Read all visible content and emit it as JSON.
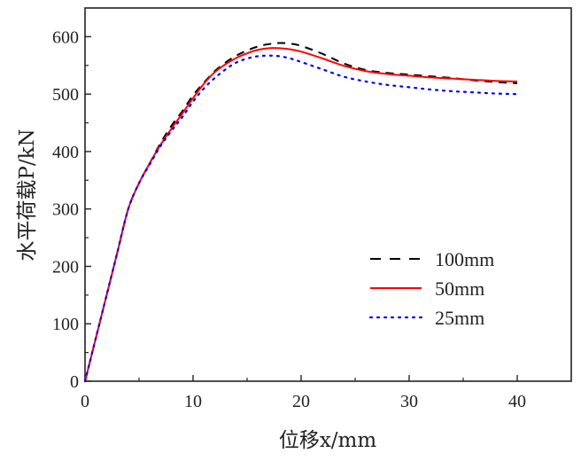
{
  "chart_data": {
    "type": "line",
    "title": "",
    "xlabel": "位移x/mm",
    "ylabel": "水平荷载P/kN",
    "xlim": [
      0,
      45
    ],
    "ylim": [
      0,
      650
    ],
    "xticks": [
      0,
      10,
      20,
      30,
      40
    ],
    "yticks": [
      0,
      100,
      200,
      300,
      400,
      500,
      600
    ],
    "grid": false,
    "legend_position": "center-right",
    "series": [
      {
        "name": "100mm",
        "color": "#000000",
        "style": "dashed",
        "x": [
          0,
          1,
          2,
          3,
          4,
          5,
          6,
          7,
          8,
          9,
          10,
          11,
          12,
          13,
          14,
          15,
          16,
          17,
          18,
          19,
          20,
          22,
          24,
          26,
          28,
          30,
          32,
          34,
          36,
          38,
          40
        ],
        "y": [
          0,
          75,
          150,
          225,
          300,
          345,
          380,
          415,
          445,
          470,
          498,
          520,
          540,
          555,
          567,
          576,
          583,
          587,
          589,
          588,
          584,
          570,
          553,
          542,
          537,
          534,
          531,
          528,
          524,
          521,
          519
        ]
      },
      {
        "name": "50mm",
        "color": "#ff0000",
        "style": "solid",
        "x": [
          0,
          1,
          2,
          3,
          4,
          5,
          6,
          7,
          8,
          9,
          10,
          11,
          12,
          13,
          14,
          15,
          16,
          17,
          18,
          19,
          20,
          22,
          24,
          26,
          28,
          30,
          32,
          34,
          36,
          38,
          40
        ],
        "y": [
          0,
          75,
          150,
          225,
          300,
          345,
          380,
          412,
          440,
          466,
          493,
          518,
          538,
          552,
          563,
          571,
          577,
          580,
          580,
          578,
          574,
          562,
          549,
          540,
          535,
          532,
          529,
          527,
          525,
          523,
          522
        ]
      },
      {
        "name": "25mm",
        "color": "#0000ff",
        "style": "dotted",
        "x": [
          0,
          1,
          2,
          3,
          4,
          5,
          6,
          7,
          8,
          9,
          10,
          11,
          12,
          13,
          14,
          15,
          16,
          17,
          18,
          19,
          20,
          22,
          24,
          26,
          28,
          30,
          32,
          34,
          36,
          38,
          40
        ],
        "y": [
          0,
          75,
          150,
          225,
          300,
          345,
          378,
          410,
          436,
          460,
          487,
          510,
          528,
          543,
          555,
          562,
          566,
          567,
          566,
          562,
          556,
          543,
          530,
          522,
          516,
          512,
          508,
          505,
          503,
          501,
          500
        ]
      }
    ]
  }
}
